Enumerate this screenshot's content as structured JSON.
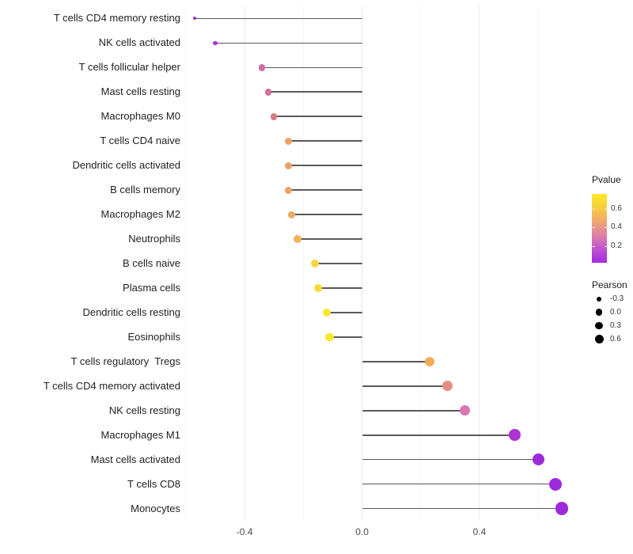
{
  "chart_data": {
    "type": "lollipop",
    "title": "",
    "xlabel": "",
    "ylabel": "",
    "x_axis": {
      "major_ticks": [
        -0.4,
        0.0,
        0.4
      ],
      "major_tick_labels": [
        "-0.4",
        "0.0",
        "0.4"
      ],
      "minor_ticks": [
        -0.6,
        -0.2,
        0.2,
        0.6
      ],
      "range": [
        -0.605,
        0.753
      ],
      "grid": true
    },
    "baseline_value": 0.0,
    "rows": [
      {
        "label": "T cells CD4 memory resting",
        "pearson": -0.57,
        "pvalue": 0.01,
        "color": "#9A2ECF"
      },
      {
        "label": "NK cells activated",
        "pearson": -0.5,
        "pvalue": 0.03,
        "color": "#A435D8"
      },
      {
        "label": "T cells follicular helper",
        "pearson": -0.34,
        "pvalue": 0.32,
        "color": "#CE6CA6"
      },
      {
        "label": "Mast cells resting",
        "pearson": -0.32,
        "pvalue": 0.35,
        "color": "#D0709C"
      },
      {
        "label": "Macrophages M0",
        "pearson": -0.3,
        "pvalue": 0.4,
        "color": "#D67B86"
      },
      {
        "label": "T cells CD4 naive",
        "pearson": -0.25,
        "pvalue": 0.5,
        "color": "#ECA166"
      },
      {
        "label": "Dendritic cells activated",
        "pearson": -0.25,
        "pvalue": 0.5,
        "color": "#ECA166"
      },
      {
        "label": "B cells memory",
        "pearson": -0.25,
        "pvalue": 0.51,
        "color": "#ECA263"
      },
      {
        "label": "Macrophages M2",
        "pearson": -0.24,
        "pvalue": 0.54,
        "color": "#EDA95C"
      },
      {
        "label": "Neutrophils",
        "pearson": -0.22,
        "pvalue": 0.57,
        "color": "#EFB45C"
      },
      {
        "label": "B cells naive",
        "pearson": -0.16,
        "pvalue": 0.64,
        "color": "#F4D741"
      },
      {
        "label": "Plasma cells",
        "pearson": -0.15,
        "pvalue": 0.66,
        "color": "#F4DC38"
      },
      {
        "label": "Dendritic cells resting",
        "pearson": -0.12,
        "pvalue": 0.71,
        "color": "#F6E72B"
      },
      {
        "label": "Eosinophils",
        "pearson": -0.11,
        "pvalue": 0.71,
        "color": "#F6E72B"
      },
      {
        "label": "T cells regulatory  Tregs",
        "pearson": 0.23,
        "pvalue": 0.52,
        "color": "#F0AC58"
      },
      {
        "label": "T cells CD4 memory activated",
        "pearson": 0.29,
        "pvalue": 0.43,
        "color": "#E68D82"
      },
      {
        "label": "NK cells resting",
        "pearson": 0.35,
        "pvalue": 0.31,
        "color": "#D877B3"
      },
      {
        "label": "Macrophages M1",
        "pearson": 0.52,
        "pvalue": 0.06,
        "color": "#AC33D4"
      },
      {
        "label": "Mast cells activated",
        "pearson": 0.6,
        "pvalue": 0.02,
        "color": "#9E2BDA"
      },
      {
        "label": "T cells CD8",
        "pearson": 0.66,
        "pvalue": 0.02,
        "color": "#9D2BDC"
      },
      {
        "label": "Monocytes",
        "pearson": 0.68,
        "pvalue": 0.02,
        "color": "#9D2BDC"
      }
    ]
  },
  "legend": {
    "pvalue": {
      "title": "Pvalue",
      "tick_labels": [
        "0.6",
        "0.4",
        "0.2"
      ],
      "tick_values": [
        0.6,
        0.4,
        0.2
      ],
      "bar_value_range": [
        0.76,
        0.02
      ],
      "gradient_top_to_bottom": [
        "#FCE826",
        "#F6CE41",
        "#EFA76E",
        "#DE7FA9",
        "#C153CF",
        "#A32CE3"
      ]
    },
    "pearson": {
      "title": "Pearson",
      "items": [
        {
          "label": "-0.3",
          "value": -0.3
        },
        {
          "label": "0.0",
          "value": 0.0
        },
        {
          "label": "0.3",
          "value": 0.3
        },
        {
          "label": "0.6",
          "value": 0.6
        }
      ]
    }
  }
}
